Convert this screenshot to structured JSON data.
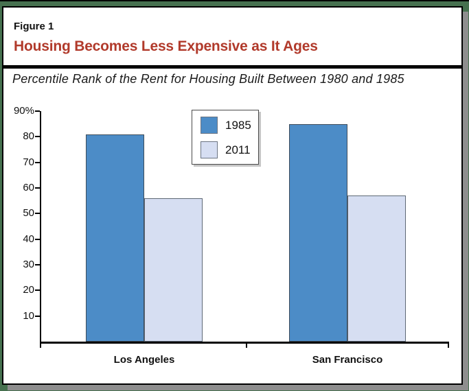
{
  "figure": {
    "label": "Figure 1",
    "title": "Housing Becomes Less Expensive as It Ages",
    "subtitle": "Percentile Rank of the Rent for Housing Built Between 1980 and 1985"
  },
  "chart_data": {
    "type": "bar",
    "categories": [
      "Los Angeles",
      "San Francisco"
    ],
    "series": [
      {
        "name": "1985",
        "values": [
          81,
          85
        ],
        "color": "#4c8cc7",
        "border": "#3d4b59"
      },
      {
        "name": "2011",
        "values": [
          56,
          57
        ],
        "color": "#d6def2",
        "border": "#5d6875"
      }
    ],
    "ylim": [
      0,
      90
    ],
    "ytick_step": 10,
    "ytick_labels": [
      "10",
      "20",
      "30",
      "40",
      "50",
      "60",
      "70",
      "80",
      "90%"
    ],
    "legend_position": "top-center-between-groups",
    "grid": false
  },
  "colors": {
    "title_red": "#b13a2b",
    "page_green": "#46714f",
    "panel_shadow_gray": "#8e8e8e",
    "bar_1985": "#4c8cc7",
    "bar_2011": "#d6def2"
  }
}
